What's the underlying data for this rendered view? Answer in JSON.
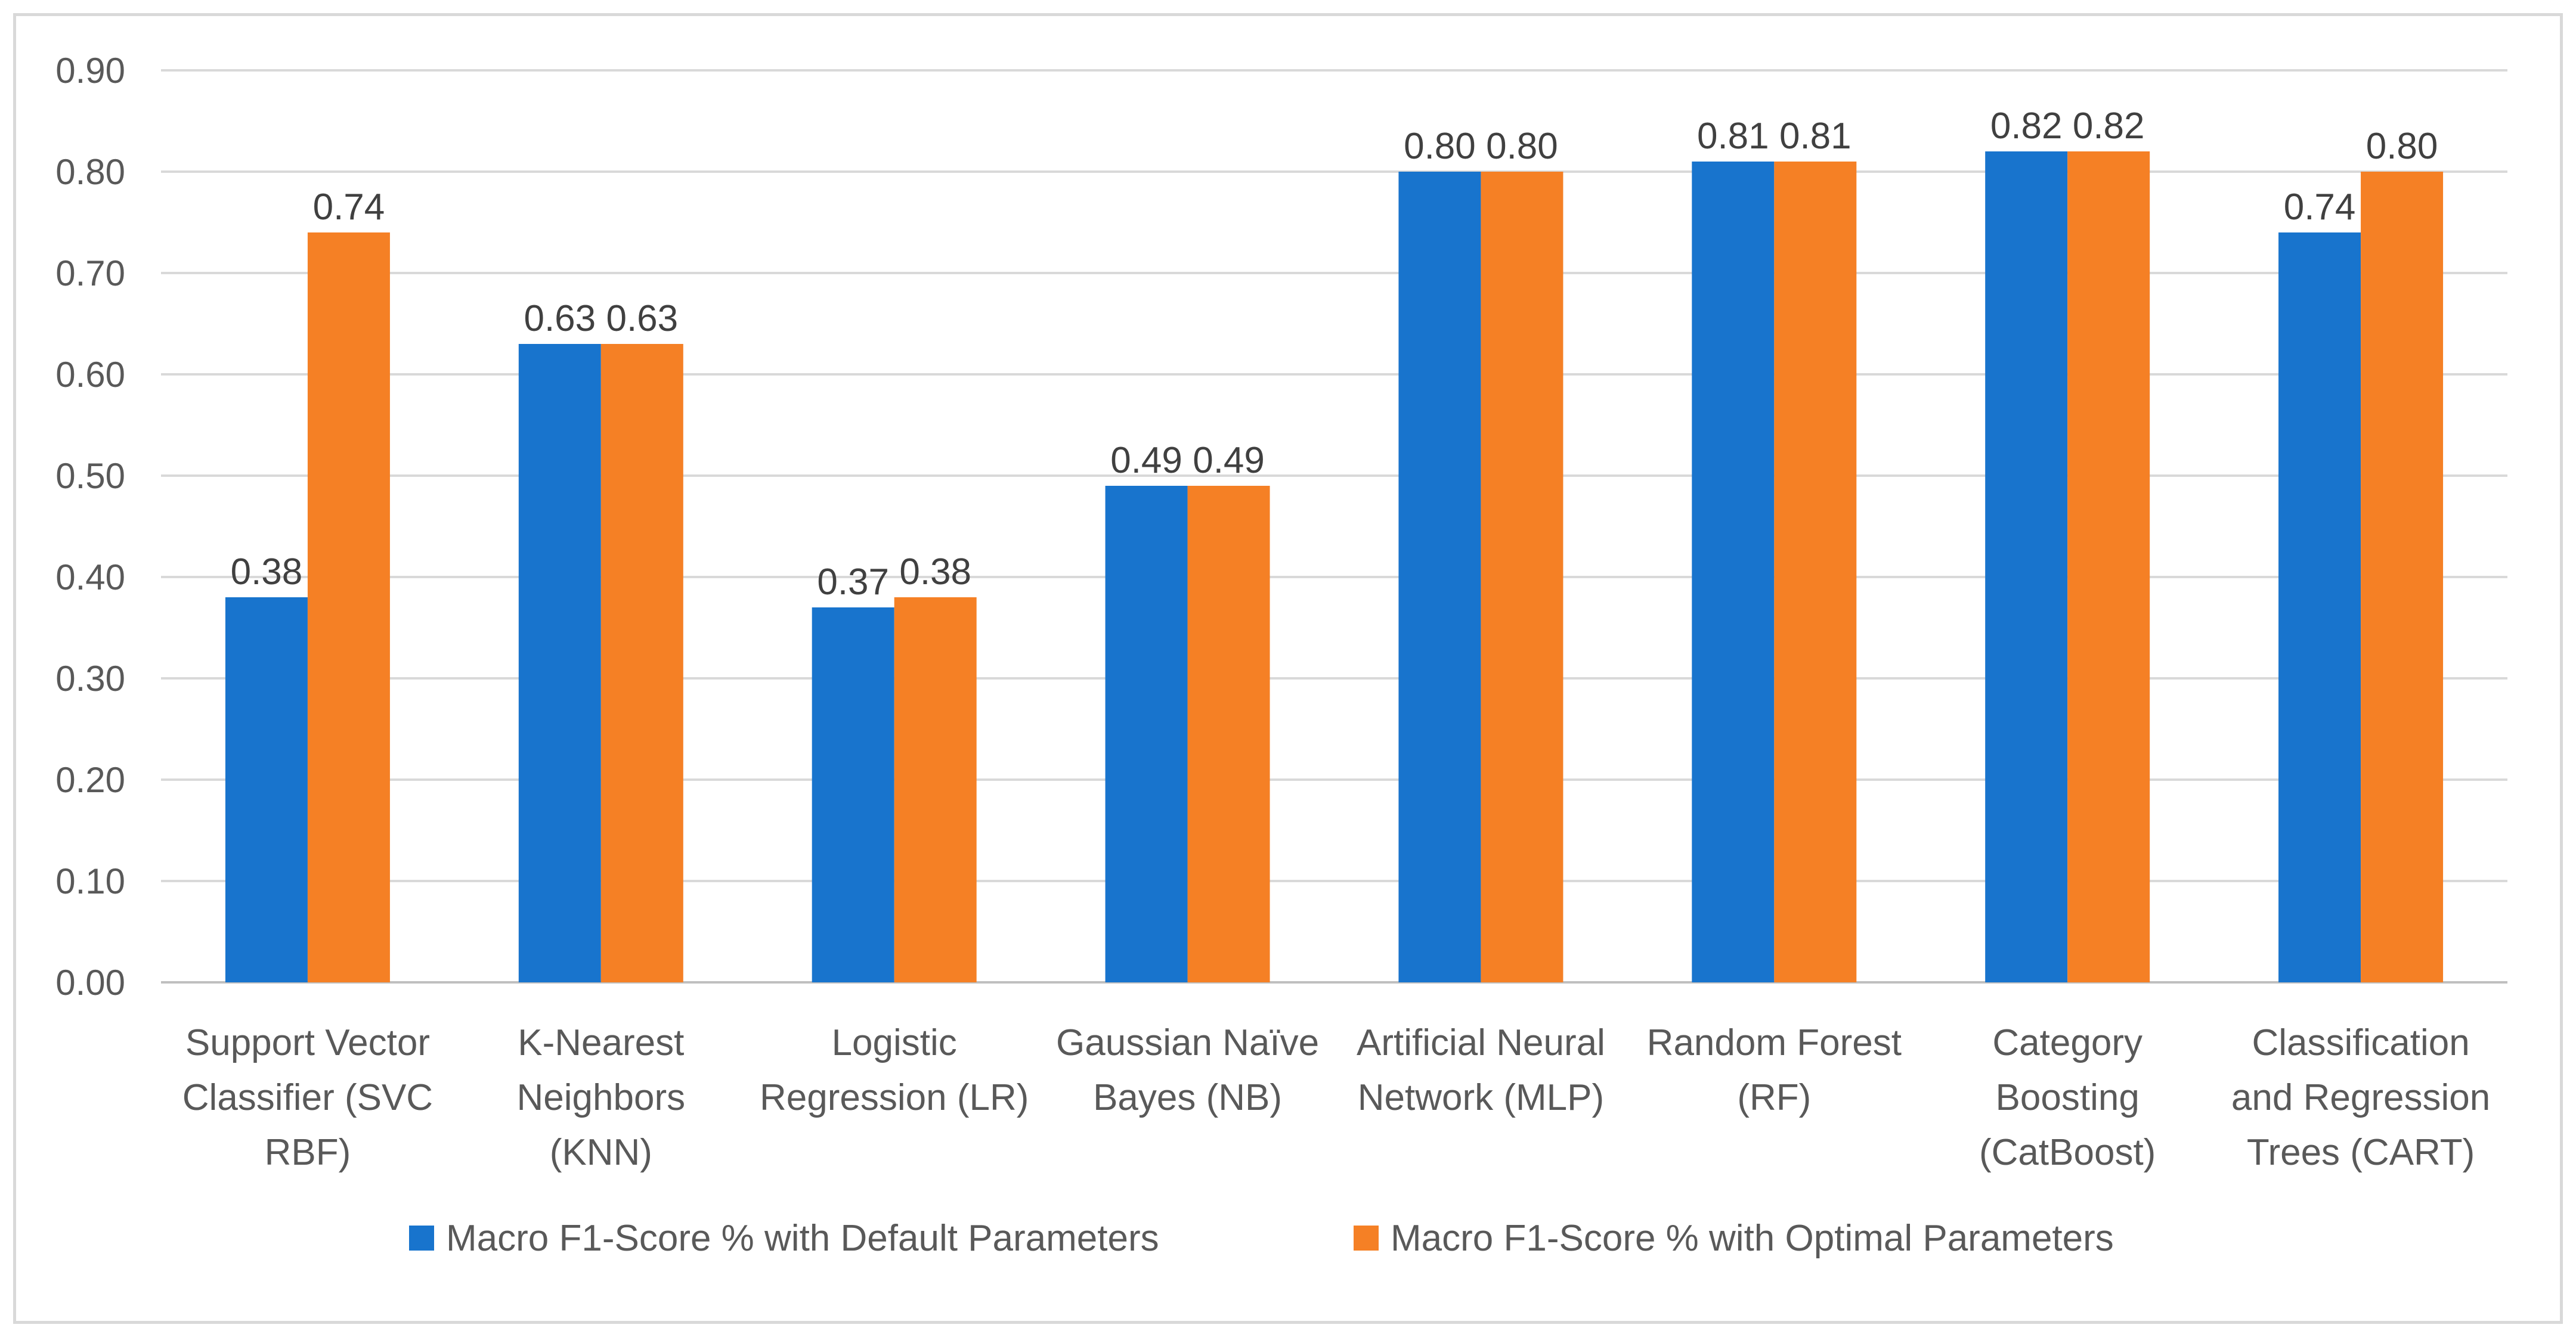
{
  "chart_data": {
    "type": "bar",
    "title": "",
    "xlabel": "",
    "ylabel": "",
    "ylim": [
      0,
      0.9
    ],
    "ytick_step": 0.1,
    "ytick_labels": [
      "0.00",
      "0.10",
      "0.20",
      "0.30",
      "0.40",
      "0.50",
      "0.60",
      "0.70",
      "0.80",
      "0.90"
    ],
    "grid": true,
    "legend_position": "bottom",
    "categories": [
      [
        "Support Vector",
        "Classifier (SVC",
        "RBF)"
      ],
      [
        "K-Nearest",
        "Neighbors",
        "(KNN)"
      ],
      [
        "Logistic",
        "Regression (LR)"
      ],
      [
        "Gaussian Naïve",
        "Bayes (NB)"
      ],
      [
        "Artificial Neural",
        "Network (MLP)"
      ],
      [
        "Random Forest",
        "(RF)"
      ],
      [
        "Category",
        "Boosting",
        "(CatBoost)"
      ],
      [
        "Classification",
        "and Regression",
        "Trees (CART)"
      ]
    ],
    "series": [
      {
        "name": "Macro F1-Score % with Default Parameters",
        "color": "#1874CD",
        "values": [
          0.38,
          0.63,
          0.37,
          0.49,
          0.8,
          0.81,
          0.82,
          0.74
        ],
        "labels": [
          "0.38",
          "0.63",
          "0.37",
          "0.49",
          "0.80",
          "0.81",
          "0.82",
          "0.74"
        ]
      },
      {
        "name": "Macro F1-Score % with Optimal Parameters",
        "color": "#F58025",
        "values": [
          0.74,
          0.63,
          0.38,
          0.49,
          0.8,
          0.81,
          0.82,
          0.8
        ],
        "labels": [
          "0.74",
          "0.63",
          "0.38",
          "0.49",
          "0.80",
          "0.81",
          "0.82",
          "0.80"
        ]
      }
    ]
  }
}
